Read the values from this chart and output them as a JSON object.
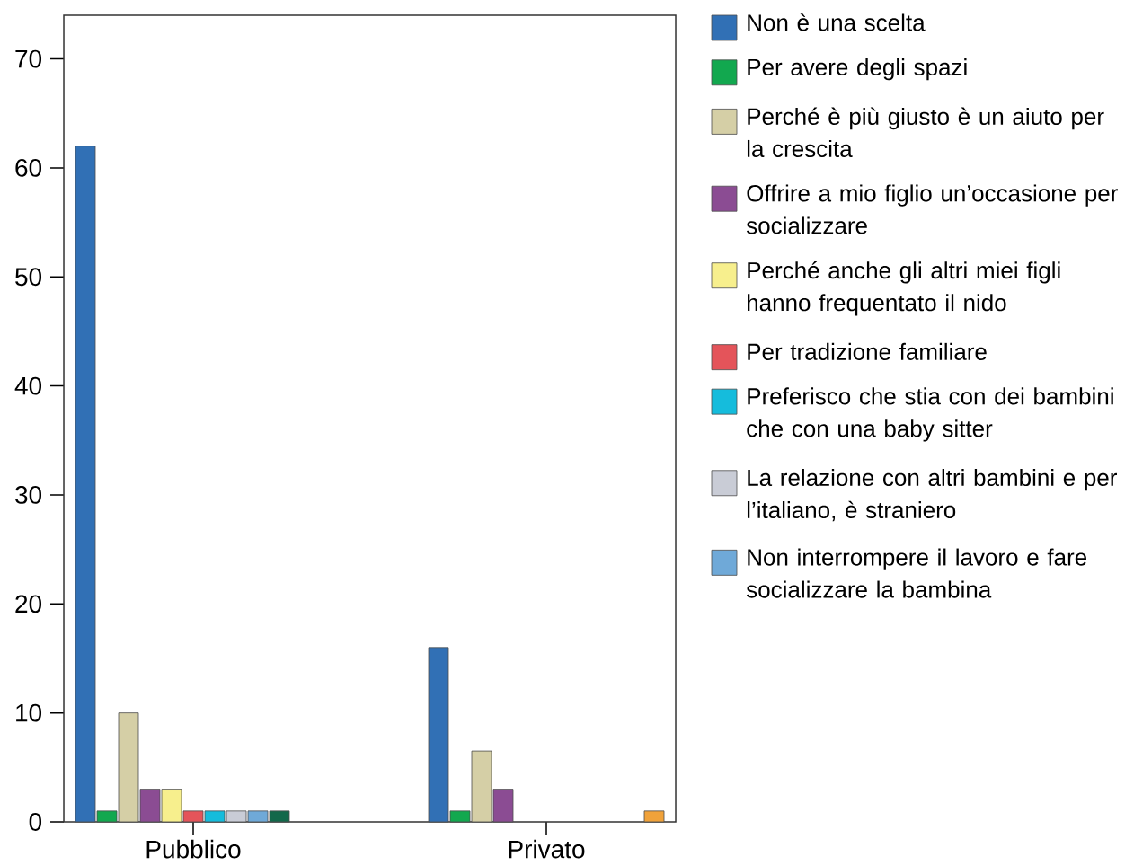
{
  "chart_data": {
    "type": "bar",
    "categories": [
      "Pubblico",
      "Privato"
    ],
    "series": [
      {
        "name": "Non è una scelta",
        "color": "#3170b5",
        "values": [
          62,
          16
        ]
      },
      {
        "name": "Per avere degli spazi",
        "color": "#12a84f",
        "values": [
          1,
          1
        ]
      },
      {
        "name": "Perché è più giusto è un aiuto per la crescita",
        "color": "#d5cfa6",
        "values": [
          10,
          6.5
        ]
      },
      {
        "name": "Offrire a mio figlio un’occasione per socializzare",
        "color": "#8b4c93",
        "values": [
          3,
          3
        ]
      },
      {
        "name": "Perché anche gli altri miei figli hanno frequentato il nido",
        "color": "#f7ef8d",
        "values": [
          3,
          null
        ]
      },
      {
        "name": "Per tradizione familiare",
        "color": "#e4545a",
        "values": [
          1,
          null
        ]
      },
      {
        "name": "Preferisco che stia con dei bambini che con una baby sitter",
        "color": "#15bcdc",
        "values": [
          1,
          null
        ]
      },
      {
        "name": "La relazione con altri bambini e per l’italiano, è straniero",
        "color": "#c9ccd6",
        "values": [
          1,
          null
        ]
      },
      {
        "name": "Non interrompere il lavoro e fare socializzare la bambina",
        "color": "#6fa9d8",
        "values": [
          1,
          null
        ]
      },
      {
        "color": "#12684a",
        "values": [
          1,
          null
        ]
      },
      {
        "color": "#f0a23a",
        "values": [
          null,
          1
        ]
      }
    ],
    "ylim": [
      0,
      74
    ],
    "yticks": [
      0,
      10,
      20,
      30,
      40,
      50,
      60,
      70
    ],
    "legend": "right"
  }
}
